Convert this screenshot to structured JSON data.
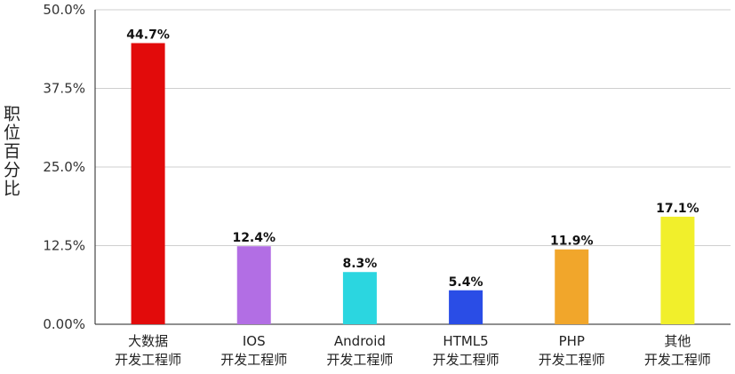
{
  "chart_data": {
    "type": "bar",
    "ylabel": "职位百分比",
    "ylim": [
      0,
      50
    ],
    "yticks": [
      "0.00%",
      "12.5%",
      "25.0%",
      "37.5%",
      "50.0%"
    ],
    "ytick_values": [
      0,
      12.5,
      25,
      37.5,
      50
    ],
    "grid": true,
    "categories": [
      [
        "大数据",
        "开发工程师"
      ],
      [
        "IOS",
        "开发工程师"
      ],
      [
        "Android",
        "开发工程师"
      ],
      [
        "HTML5",
        "开发工程师"
      ],
      [
        "PHP",
        "开发工程师"
      ],
      [
        "其他",
        "开发工程师"
      ]
    ],
    "values": [
      44.7,
      12.4,
      8.3,
      5.4,
      11.9,
      17.1
    ],
    "data_labels": [
      "44.7%",
      "12.4%",
      "8.3%",
      "5.4%",
      "11.9%",
      "17.1%"
    ],
    "colors": [
      "#e20b0b",
      "#b26ee4",
      "#2bd6e0",
      "#2a4de6",
      "#f1a62b",
      "#f1ef2b"
    ]
  }
}
